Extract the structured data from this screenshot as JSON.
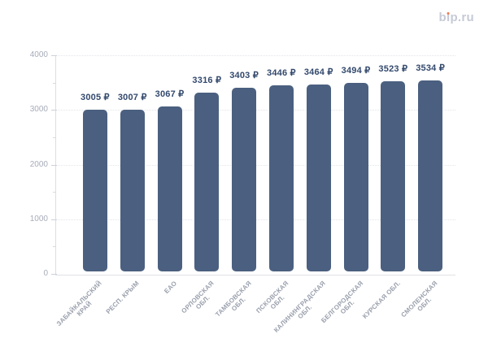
{
  "logo": {
    "text": "bip.ru",
    "part_b": "b",
    "part_i": "ı",
    "part_rest": "p.ru",
    "text_color": "#c6cad6",
    "dot_color": "#f2764e"
  },
  "chart_data": {
    "type": "bar",
    "title": "",
    "xlabel": "",
    "ylabel": "",
    "categories": [
      "ЗАБАЙКАЛЬСКИЙ КРАЙ",
      "РЕСП. КРЫМ",
      "ЕАО",
      "ОРЛОВСКАЯ ОБЛ.",
      "ТАМБОВСКАЯ ОБЛ.",
      "ПСКОВСКАЯ ОБЛ.",
      "КАЛИНИНГРАДСКАЯ ОБЛ.",
      "БЕЛГОРОДСКАЯ ОБЛ.",
      "КУРСКАЯ ОБЛ.",
      "СМОЛЕНСКАЯ ОБЛ."
    ],
    "category_lines": [
      [
        "ЗАБАЙКАЛЬСКИЙ",
        "КРАЙ"
      ],
      [
        "РЕСП. КРЫМ"
      ],
      [
        "ЕАО"
      ],
      [
        "ОРЛОВСКАЯ",
        "ОБЛ."
      ],
      [
        "ТАМБОВСКАЯ",
        "ОБЛ."
      ],
      [
        "ПСКОВСКАЯ",
        "ОБЛ."
      ],
      [
        "КАЛИНИНГРАДСКАЯ",
        "ОБЛ."
      ],
      [
        "БЕЛГОРОДСКАЯ",
        "ОБЛ."
      ],
      [
        "КУРСКАЯ ОБЛ."
      ],
      [
        "СМОЛЕНСКАЯ",
        "ОБЛ."
      ]
    ],
    "values": [
      3005,
      3007,
      3067,
      3316,
      3403,
      3446,
      3464,
      3494,
      3523,
      3534
    ],
    "value_suffix": "₽",
    "ylim": [
      0,
      4000
    ],
    "y_ticks": [
      0,
      1000,
      2000,
      3000,
      4000
    ],
    "y_minor_ticks": [
      500,
      1500,
      2500,
      3500
    ],
    "grid": "horizontal-dotted",
    "legend": false,
    "bar_color": "#4b6080",
    "value_label_color": "#33496d",
    "axis_label_color": "#a7acb8",
    "x_label_color": "#9aa0ad"
  }
}
